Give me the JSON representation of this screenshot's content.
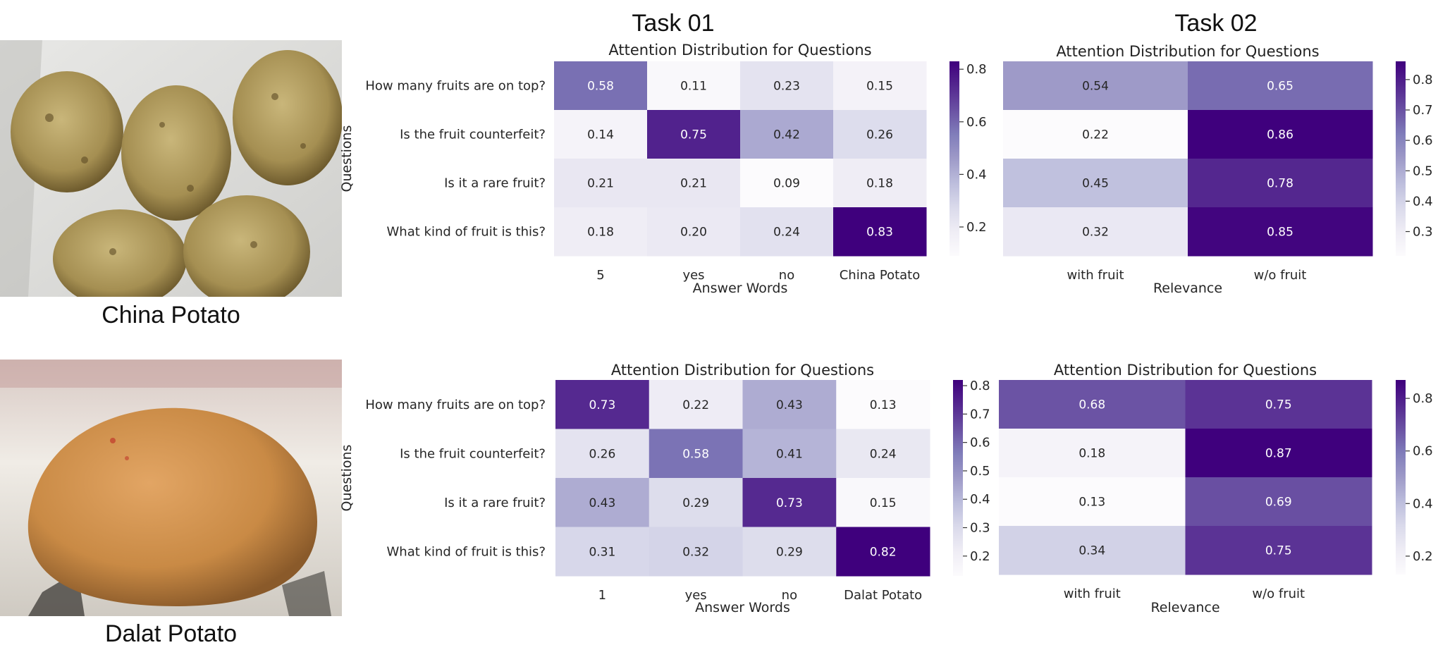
{
  "tasks": [
    {
      "label": "Task 01"
    },
    {
      "label": "Task 02"
    }
  ],
  "photos": [
    {
      "caption": "China Potato"
    },
    {
      "caption": "Dalat Potato"
    }
  ],
  "colors": {
    "low": "#fcfbfd",
    "high": "#3f007d",
    "ramp": [
      "#fcfbfd",
      "#efedf5",
      "#dadaeb",
      "#bcbddc",
      "#9e9ac8",
      "#807dba",
      "#6a51a3",
      "#54278f",
      "#3f007d"
    ]
  },
  "chart_data": [
    {
      "type": "heatmap",
      "title": "Attention Distribution for Questions",
      "xlabel": "Answer Words",
      "ylabel": "Questions",
      "x": [
        "5",
        "yes",
        "no",
        "China Potato"
      ],
      "y": [
        "How many fruits are on top?",
        "Is the fruit counterfeit?",
        "Is it a rare fruit?",
        "What kind of fruit is this?"
      ],
      "values": [
        [
          0.58,
          0.11,
          0.23,
          0.15
        ],
        [
          0.14,
          0.75,
          0.42,
          0.26
        ],
        [
          0.21,
          0.21,
          0.09,
          0.18
        ],
        [
          0.18,
          0.2,
          0.24,
          0.83
        ]
      ],
      "colorbar_ticks": [
        "0.2",
        "0.4",
        "0.6",
        "0.8"
      ],
      "colorbar_tick_values": [
        0.2,
        0.4,
        0.6,
        0.8
      ],
      "vmin": 0.09,
      "vmax": 0.83
    },
    {
      "type": "heatmap",
      "title": "Attention Distribution for Questions",
      "xlabel": "Relevance",
      "ylabel": "",
      "x": [
        "with fruit",
        "w/o fruit"
      ],
      "y": [],
      "values": [
        [
          0.54,
          0.65
        ],
        [
          0.22,
          0.86
        ],
        [
          0.45,
          0.78
        ],
        [
          0.32,
          0.85
        ]
      ],
      "colorbar_ticks": [
        "0.3",
        "0.4",
        "0.5",
        "0.6",
        "0.7",
        "0.8"
      ],
      "colorbar_tick_values": [
        0.3,
        0.4,
        0.5,
        0.6,
        0.7,
        0.8
      ],
      "vmin": 0.22,
      "vmax": 0.86
    },
    {
      "type": "heatmap",
      "title": "Attention Distribution for Questions",
      "xlabel": "Answer Words",
      "ylabel": "Questions",
      "x": [
        "1",
        "yes",
        "no",
        "Dalat Potato"
      ],
      "y": [
        "How many fruits are on top?",
        "Is the fruit counterfeit?",
        "Is it a rare fruit?",
        "What kind of fruit is this?"
      ],
      "values": [
        [
          0.73,
          0.22,
          0.43,
          0.13
        ],
        [
          0.26,
          0.58,
          0.41,
          0.24
        ],
        [
          0.43,
          0.29,
          0.73,
          0.15
        ],
        [
          0.31,
          0.32,
          0.29,
          0.82
        ]
      ],
      "colorbar_ticks": [
        "0.2",
        "0.3",
        "0.4",
        "0.5",
        "0.6",
        "0.7",
        "0.8"
      ],
      "colorbar_tick_values": [
        0.2,
        0.3,
        0.4,
        0.5,
        0.6,
        0.7,
        0.8
      ],
      "vmin": 0.13,
      "vmax": 0.82
    },
    {
      "type": "heatmap",
      "title": "Attention Distribution for Questions",
      "xlabel": "Relevance",
      "ylabel": "",
      "x": [
        "with fruit",
        "w/o fruit"
      ],
      "y": [],
      "values": [
        [
          0.68,
          0.75
        ],
        [
          0.18,
          0.87
        ],
        [
          0.13,
          0.69
        ],
        [
          0.34,
          0.75
        ]
      ],
      "colorbar_ticks": [
        "0.2",
        "0.4",
        "0.6",
        "0.8"
      ],
      "colorbar_tick_values": [
        0.2,
        0.4,
        0.6,
        0.8
      ],
      "vmin": 0.13,
      "vmax": 0.87
    }
  ]
}
